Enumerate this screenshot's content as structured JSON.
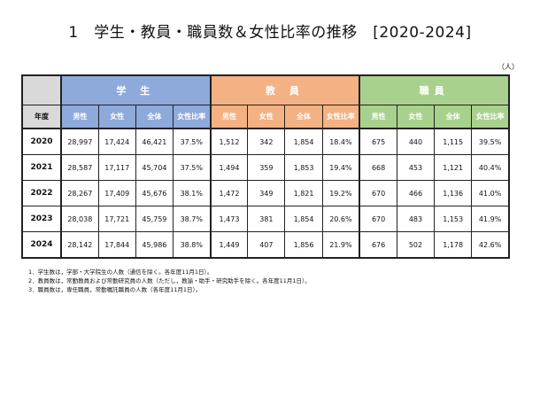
{
  "title": "1　学生・教員・職員数＆女性比率の推移　[2020-2024]",
  "unit": "（人）",
  "table": {
    "group_headers": [
      "学 生",
      "教 員",
      "職員"
    ],
    "year_header": "年度",
    "sub_headers": [
      "男性",
      "女性",
      "全体",
      "女性比率"
    ],
    "rows": [
      {
        "year": "2020",
        "student": [
          "28,997",
          "17,424",
          "46,421",
          "37.5%"
        ],
        "faculty": [
          "1,512",
          "342",
          "1,854",
          "18.4%"
        ],
        "staff": [
          "675",
          "440",
          "1,115",
          "39.5%"
        ]
      },
      {
        "year": "2021",
        "student": [
          "28,587",
          "17,117",
          "45,704",
          "37.5%"
        ],
        "faculty": [
          "1,494",
          "359",
          "1,853",
          "19.4%"
        ],
        "staff": [
          "668",
          "453",
          "1,121",
          "40.4%"
        ]
      },
      {
        "year": "2022",
        "student": [
          "28,267",
          "17,409",
          "45,676",
          "38.1%"
        ],
        "faculty": [
          "1,472",
          "349",
          "1,821",
          "19.2%"
        ],
        "staff": [
          "670",
          "466",
          "1,136",
          "41.0%"
        ]
      },
      {
        "year": "2023",
        "student": [
          "28,038",
          "17,721",
          "45,759",
          "38.7%"
        ],
        "faculty": [
          "1,473",
          "381",
          "1,854",
          "20.6%"
        ],
        "staff": [
          "670",
          "483",
          "1,153",
          "41.9%"
        ]
      },
      {
        "year": "2024",
        "student": [
          "28,142",
          "17,844",
          "45,986",
          "38.8%"
        ],
        "faculty": [
          "1,449",
          "407",
          "1,856",
          "21.9%"
        ],
        "staff": [
          "676",
          "502",
          "1,178",
          "42.6%"
        ]
      }
    ]
  },
  "notes": [
    "1．学生数は，学部・大学院生の人数（通信を除く。各年度11月1日）。",
    "2．教員数は，常勤教員および常勤研究員の人数（ただし，教諭・助手・研究助手を除く。各年度11月1日）。",
    "3．職員数は，専任職員，常勤嘱託職員の人数（各年度11月1日）。"
  ],
  "colors": {
    "student": "#8eaadb",
    "faculty": "#f4b183",
    "staff": "#a9d18e",
    "year": "#d9d9d9"
  }
}
